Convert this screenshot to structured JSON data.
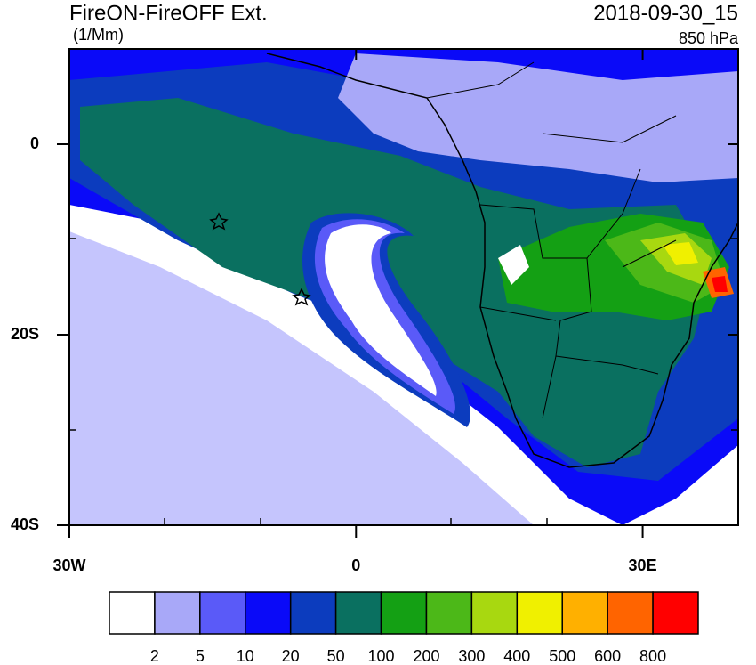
{
  "title": "FireON-FireOFF Ext.",
  "units": "(1/Mm)",
  "time": "2018-09-30_15",
  "level": "850 hPa",
  "map": {
    "lonlim": [
      -30,
      40
    ],
    "latlim": [
      -40,
      10
    ],
    "lon_ticks": [
      {
        "value": -30,
        "label": "30W"
      },
      {
        "value": 0,
        "label": "0"
      },
      {
        "value": 30,
        "label": "30E"
      }
    ],
    "lat_ticks": [
      {
        "value": 0,
        "label": "0"
      },
      {
        "value": -20,
        "label": "20S"
      },
      {
        "value": -40,
        "label": "40S"
      }
    ]
  },
  "colorbar": {
    "colors": [
      "#ffffff",
      "#a8a8f8",
      "#5a5af8",
      "#0a0af8",
      "#0c3cbe",
      "#0a7060",
      "#14a014",
      "#4cb818",
      "#a8d810",
      "#f0f000",
      "#ffb000",
      "#ff6400",
      "#ff0000"
    ],
    "labels": [
      2,
      5,
      10,
      20,
      50,
      100,
      200,
      300,
      400,
      500,
      600,
      800
    ]
  }
}
